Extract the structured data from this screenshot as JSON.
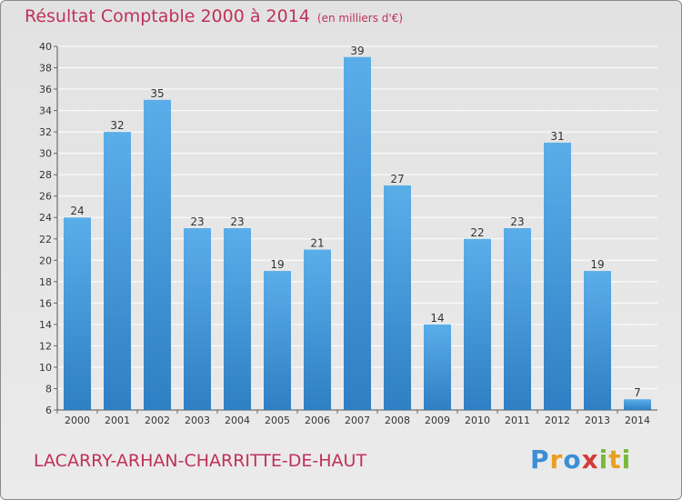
{
  "header": {
    "title": "Résultat Comptable 2000 à 2014",
    "unit": "(en milliers d'€)"
  },
  "footer": {
    "commune": "LACARRY-ARHAN-CHARRITTE-DE-HAUT",
    "logo": "Proxiti"
  },
  "colors": {
    "bar": "#4a9fe0",
    "title": "#c0305a",
    "grid": "#ffffff"
  },
  "chart_data": {
    "type": "bar",
    "title": "Résultat Comptable 2000 à 2014",
    "categories": [
      "2000",
      "2001",
      "2002",
      "2003",
      "2004",
      "2005",
      "2006",
      "2007",
      "2008",
      "2009",
      "2010",
      "2011",
      "2012",
      "2013",
      "2014"
    ],
    "values": [
      24,
      32,
      35,
      23,
      23,
      19,
      21,
      39,
      27,
      14,
      22,
      23,
      31,
      19,
      7
    ],
    "ylim": [
      6,
      40
    ],
    "ytick_step": 2,
    "grid": true
  }
}
